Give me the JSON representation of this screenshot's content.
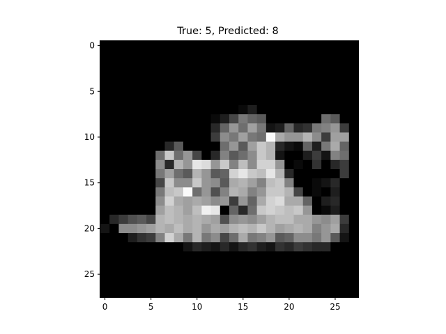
{
  "chart_data": {
    "type": "heatmap",
    "title": "True: 5, Predicted: 8",
    "colormap": "gray",
    "rows": 28,
    "cols": 28,
    "xlim": [
      -0.5,
      27.5
    ],
    "ylim": [
      27.5,
      -0.5
    ],
    "xticks": [
      0,
      5,
      10,
      15,
      20,
      25
    ],
    "yticks": [
      0,
      5,
      10,
      15,
      20,
      25
    ],
    "grid": false,
    "value_range": [
      0,
      255
    ],
    "values": [
      [
        0,
        0,
        0,
        0,
        0,
        0,
        0,
        0,
        0,
        0,
        0,
        0,
        0,
        0,
        0,
        0,
        0,
        0,
        0,
        0,
        0,
        0,
        0,
        0,
        0,
        0,
        0,
        0
      ],
      [
        0,
        0,
        0,
        0,
        0,
        0,
        0,
        0,
        0,
        0,
        0,
        0,
        0,
        0,
        0,
        0,
        0,
        0,
        0,
        0,
        0,
        0,
        0,
        0,
        0,
        0,
        0,
        0
      ],
      [
        0,
        0,
        0,
        0,
        0,
        0,
        0,
        0,
        0,
        0,
        0,
        0,
        0,
        0,
        0,
        0,
        0,
        0,
        0,
        0,
        0,
        0,
        0,
        0,
        0,
        0,
        0,
        0
      ],
      [
        0,
        0,
        0,
        0,
        0,
        0,
        0,
        0,
        0,
        0,
        0,
        0,
        0,
        0,
        0,
        0,
        0,
        0,
        0,
        0,
        0,
        0,
        0,
        0,
        0,
        0,
        0,
        0
      ],
      [
        0,
        0,
        0,
        0,
        0,
        0,
        0,
        0,
        0,
        0,
        0,
        0,
        0,
        0,
        0,
        0,
        0,
        0,
        0,
        0,
        0,
        0,
        0,
        0,
        0,
        0,
        0,
        0
      ],
      [
        0,
        0,
        0,
        0,
        0,
        0,
        0,
        0,
        0,
        0,
        0,
        0,
        0,
        0,
        0,
        0,
        0,
        0,
        0,
        0,
        0,
        0,
        0,
        0,
        0,
        0,
        0,
        0
      ],
      [
        0,
        0,
        0,
        0,
        0,
        0,
        0,
        0,
        0,
        0,
        0,
        0,
        0,
        0,
        0,
        0,
        0,
        0,
        0,
        0,
        0,
        0,
        0,
        0,
        0,
        0,
        0,
        0
      ],
      [
        0,
        0,
        0,
        0,
        0,
        0,
        0,
        0,
        0,
        0,
        0,
        0,
        0,
        0,
        0,
        10,
        30,
        0,
        0,
        0,
        0,
        0,
        0,
        0,
        0,
        0,
        0,
        0
      ],
      [
        0,
        0,
        0,
        0,
        0,
        0,
        0,
        0,
        0,
        0,
        0,
        0,
        10,
        30,
        70,
        120,
        100,
        90,
        0,
        0,
        0,
        0,
        0,
        0,
        110,
        90,
        0,
        0
      ],
      [
        0,
        0,
        0,
        0,
        0,
        0,
        0,
        0,
        0,
        0,
        0,
        0,
        40,
        100,
        150,
        110,
        160,
        120,
        20,
        30,
        100,
        40,
        50,
        120,
        130,
        150,
        60,
        0
      ],
      [
        0,
        0,
        0,
        0,
        0,
        0,
        0,
        0,
        0,
        0,
        0,
        0,
        60,
        140,
        120,
        160,
        120,
        110,
        250,
        170,
        150,
        150,
        180,
        140,
        60,
        160,
        160,
        0
      ],
      [
        0,
        0,
        0,
        0,
        0,
        0,
        0,
        40,
        90,
        0,
        0,
        0,
        0,
        110,
        150,
        90,
        160,
        200,
        180,
        40,
        20,
        10,
        100,
        30,
        120,
        170,
        100,
        0
      ],
      [
        0,
        0,
        0,
        0,
        0,
        0,
        110,
        200,
        110,
        150,
        70,
        0,
        40,
        130,
        90,
        110,
        140,
        200,
        180,
        20,
        0,
        0,
        30,
        60,
        20,
        130,
        110,
        0
      ],
      [
        0,
        0,
        0,
        0,
        0,
        0,
        140,
        40,
        180,
        150,
        230,
        220,
        150,
        200,
        130,
        190,
        140,
        210,
        210,
        150,
        0,
        10,
        0,
        50,
        0,
        40,
        60,
        0
      ],
      [
        0,
        0,
        0,
        0,
        0,
        0,
        120,
        160,
        110,
        90,
        180,
        150,
        90,
        100,
        210,
        230,
        200,
        190,
        230,
        180,
        40,
        0,
        0,
        0,
        0,
        0,
        60,
        0
      ],
      [
        0,
        0,
        0,
        0,
        0,
        0,
        70,
        200,
        140,
        140,
        200,
        150,
        140,
        90,
        170,
        180,
        160,
        130,
        190,
        200,
        130,
        0,
        0,
        10,
        20,
        40,
        0,
        0
      ],
      [
        0,
        0,
        0,
        0,
        0,
        0,
        120,
        190,
        200,
        250,
        110,
        150,
        80,
        130,
        180,
        170,
        130,
        150,
        200,
        200,
        180,
        70,
        0,
        10,
        0,
        30,
        0,
        0
      ],
      [
        0,
        0,
        0,
        0,
        0,
        0,
        140,
        210,
        170,
        160,
        170,
        160,
        140,
        150,
        60,
        150,
        100,
        170,
        210,
        220,
        170,
        170,
        100,
        0,
        30,
        40,
        0,
        0
      ],
      [
        0,
        0,
        0,
        0,
        0,
        0,
        160,
        190,
        180,
        160,
        190,
        240,
        230,
        0,
        100,
        40,
        110,
        200,
        210,
        200,
        190,
        200,
        150,
        0,
        10,
        30,
        0,
        0
      ],
      [
        0,
        40,
        60,
        80,
        90,
        70,
        180,
        190,
        180,
        170,
        180,
        170,
        160,
        80,
        140,
        150,
        140,
        160,
        180,
        190,
        190,
        170,
        170,
        150,
        140,
        160,
        60,
        0
      ],
      [
        20,
        0,
        140,
        140,
        150,
        160,
        180,
        170,
        190,
        170,
        180,
        150,
        170,
        160,
        180,
        190,
        180,
        200,
        180,
        160,
        170,
        180,
        170,
        130,
        150,
        170,
        40,
        0
      ],
      [
        0,
        0,
        0,
        30,
        50,
        60,
        130,
        210,
        170,
        120,
        180,
        120,
        140,
        70,
        110,
        170,
        120,
        130,
        150,
        90,
        100,
        140,
        140,
        120,
        150,
        90,
        20,
        0
      ],
      [
        0,
        0,
        0,
        0,
        0,
        0,
        0,
        0,
        0,
        20,
        40,
        30,
        20,
        40,
        20,
        40,
        50,
        30,
        20,
        50,
        40,
        60,
        50,
        40,
        40,
        0,
        0,
        0
      ],
      [
        0,
        0,
        0,
        0,
        0,
        0,
        0,
        0,
        0,
        0,
        0,
        0,
        0,
        0,
        0,
        0,
        0,
        0,
        0,
        0,
        0,
        0,
        0,
        0,
        0,
        0,
        0,
        0
      ],
      [
        0,
        0,
        0,
        0,
        0,
        0,
        0,
        0,
        0,
        0,
        0,
        0,
        0,
        0,
        0,
        0,
        0,
        0,
        0,
        0,
        0,
        0,
        0,
        0,
        0,
        0,
        0,
        0
      ],
      [
        0,
        0,
        0,
        0,
        0,
        0,
        0,
        0,
        0,
        0,
        0,
        0,
        0,
        0,
        0,
        0,
        0,
        0,
        0,
        0,
        0,
        0,
        0,
        0,
        0,
        0,
        0,
        0
      ],
      [
        0,
        0,
        0,
        0,
        0,
        0,
        0,
        0,
        0,
        0,
        0,
        0,
        0,
        0,
        0,
        0,
        0,
        0,
        0,
        0,
        0,
        0,
        0,
        0,
        0,
        0,
        0,
        0
      ],
      [
        0,
        0,
        0,
        0,
        0,
        0,
        0,
        0,
        0,
        0,
        0,
        0,
        0,
        0,
        0,
        0,
        0,
        0,
        0,
        0,
        0,
        0,
        0,
        0,
        0,
        0,
        0,
        0
      ]
    ]
  }
}
